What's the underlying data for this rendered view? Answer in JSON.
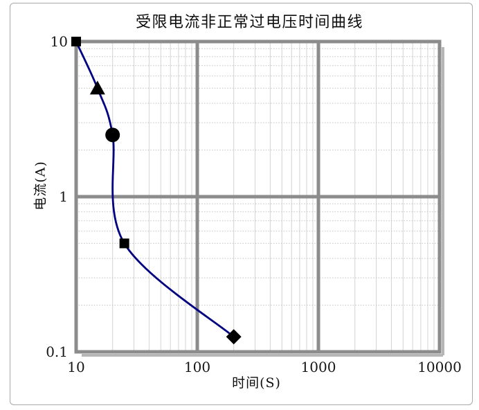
{
  "page": {
    "background": "#ffffff"
  },
  "chart_data": {
    "type": "line",
    "title": "受限电流非正常过电压时间曲线",
    "xlabel": "时间(S)",
    "ylabel": "电流(A)",
    "x_scale": "log",
    "y_scale": "log",
    "xlim": [
      10,
      10000
    ],
    "ylim": [
      0.1,
      10
    ],
    "x_ticks": [
      10,
      100,
      1000,
      10000
    ],
    "x_tick_labels": [
      "10",
      "100",
      "1000",
      "10000"
    ],
    "y_ticks": [
      10,
      1,
      0.1
    ],
    "y_tick_labels": [
      "10",
      "1",
      "0.1"
    ],
    "grid": {
      "major": true,
      "minor": true
    },
    "legend": false,
    "series": [
      {
        "color": "#000080",
        "marker_color": "#000000",
        "points": [
          {
            "x": 10,
            "y": 10,
            "marker": "square"
          },
          {
            "x": 15,
            "y": 5,
            "marker": "triangle"
          },
          {
            "x": 20,
            "y": 2.5,
            "marker": "circle"
          },
          {
            "x": 25,
            "y": 0.5,
            "marker": "square"
          },
          {
            "x": 200,
            "y": 0.125,
            "marker": "diamond"
          }
        ]
      }
    ]
  },
  "colors": {
    "curve": "#000080",
    "marker": "#000000",
    "grid_major": "#8c8c8c",
    "grid_minor": "#d4d4d4",
    "grid_minor_dotted": "#c2c2c2",
    "plot_border": "#8c8c8c",
    "border_shadow": "#b6b6b6",
    "outer_frame": "#a8a8a8",
    "text": "#161616"
  }
}
